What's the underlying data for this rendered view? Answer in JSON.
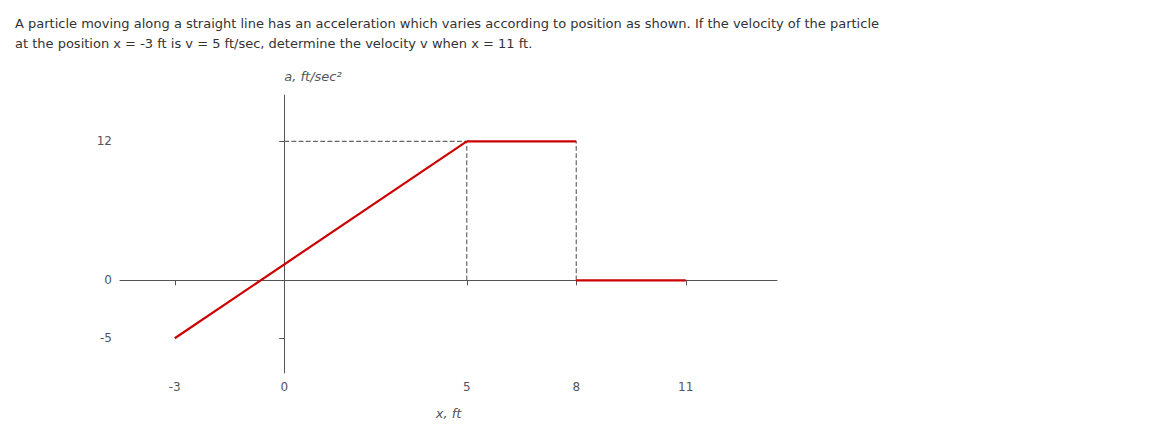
{
  "chart_data": {
    "type": "line",
    "title": "A particle moving along a straight line has an acceleration which varies according to position as shown. If the velocity of the particle\nat the position x = -3 ft is v = 5 ft/sec, determine the velocity v when x = 11 ft.",
    "xlabel": "x, ft",
    "ylabel": "a, ft/sec²",
    "xlim": [
      -4.5,
      13.5
    ],
    "ylim": [
      -8,
      16
    ],
    "xticks": [
      -3,
      0,
      5,
      8,
      11
    ],
    "yticks": [
      -5,
      0,
      12
    ],
    "grid": false,
    "series": [
      {
        "x": [
          -3,
          5
        ],
        "values": [
          -5,
          12
        ],
        "color": "#cc0000",
        "line_style": "solid"
      },
      {
        "x": [
          5,
          8
        ],
        "values": [
          12,
          12
        ],
        "color": "#cc0000",
        "line_style": "solid"
      },
      {
        "x": [
          8,
          11
        ],
        "values": [
          0,
          0
        ],
        "color": "#cc0000",
        "line_style": "solid"
      },
      {
        "x": [
          5,
          5
        ],
        "values": [
          0,
          12
        ],
        "color": "#666666",
        "line_style": "dashed"
      },
      {
        "x": [
          8,
          8
        ],
        "values": [
          0,
          12
        ],
        "color": "#666666",
        "line_style": "dashed"
      },
      {
        "x": [
          0,
          5
        ],
        "values": [
          12,
          12
        ],
        "color": "#666666",
        "line_style": "dashed"
      }
    ]
  }
}
